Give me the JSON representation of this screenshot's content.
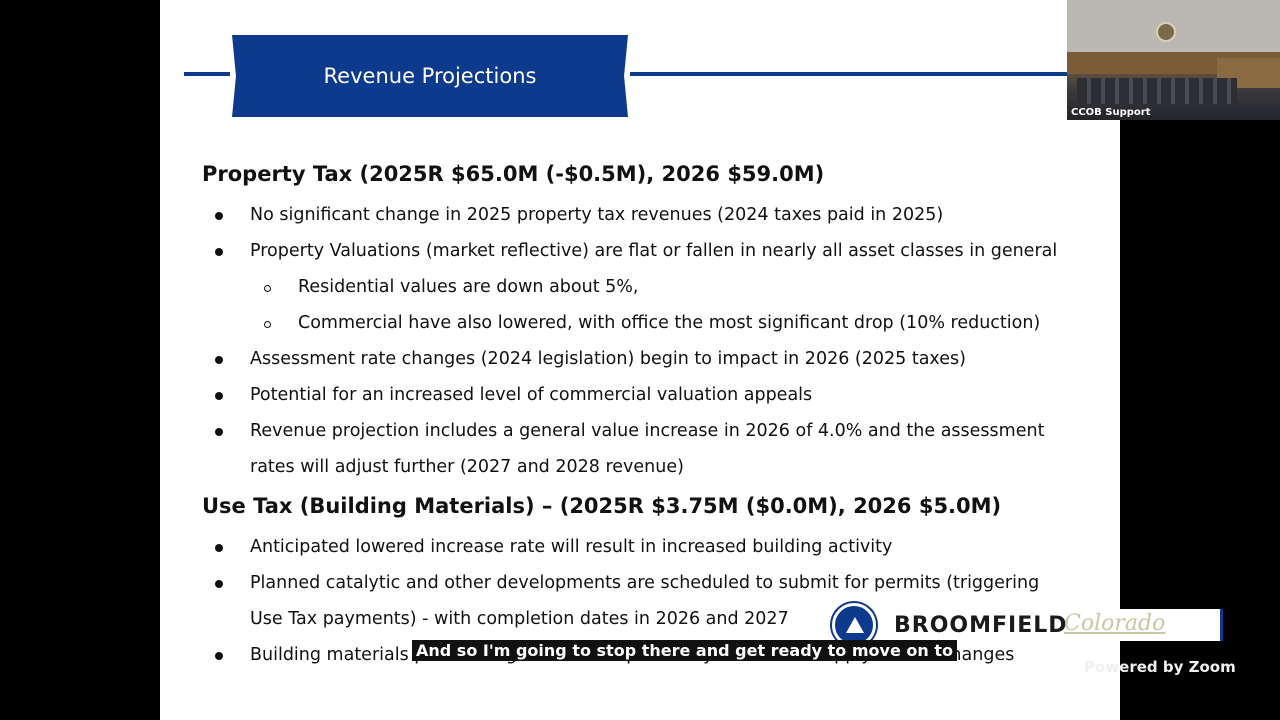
{
  "slide": {
    "title": "Revenue Projections",
    "property_tax": {
      "heading": "Property Tax  (2025R $65.0M (-$0.5M), 2026 $59.0M)",
      "bullets": [
        "No significant change in 2025 property tax revenues (2024 taxes paid in 2025)",
        "Property Valuations (market reflective) are flat or fallen in nearly all asset classes in general",
        "Assessment rate changes (2024 legislation) begin to impact in 2026 (2025 taxes)",
        "Potential for an increased level of commercial valuation appeals",
        "Revenue projection includes a general value increase in 2026 of 4.0%  and the assessment",
        "rates will adjust further (2027 and 2028 revenue)"
      ],
      "sub_bullets": [
        "Residential values are down about 5%,",
        "Commercial have also lowered, with office the most significant drop (10% reduction)"
      ]
    },
    "use_tax": {
      "heading": "Use Tax (Building Materials) – (2025R $3.75M ($0.0M), 2026 $5.0M)",
      "bullets": [
        "Anticipated lowered increase rate will result in increased building activity",
        "Planned catalytic and other developments are scheduled to submit for permits (triggering",
        "Use Tax payments) - with completion dates in 2026 and 2027",
        "Building materials price changes will be impacted by tariffs and supply source changes"
      ]
    }
  },
  "video": {
    "participant_name": "CCOB Support"
  },
  "logo": {
    "name": "BROOMFIELD",
    "state": "Colorado"
  },
  "caption": "And so I'm going to stop there and get ready to move on to",
  "powered_by": "Powered by Zoom",
  "colors": {
    "brand_blue": "#0d3a8c"
  }
}
